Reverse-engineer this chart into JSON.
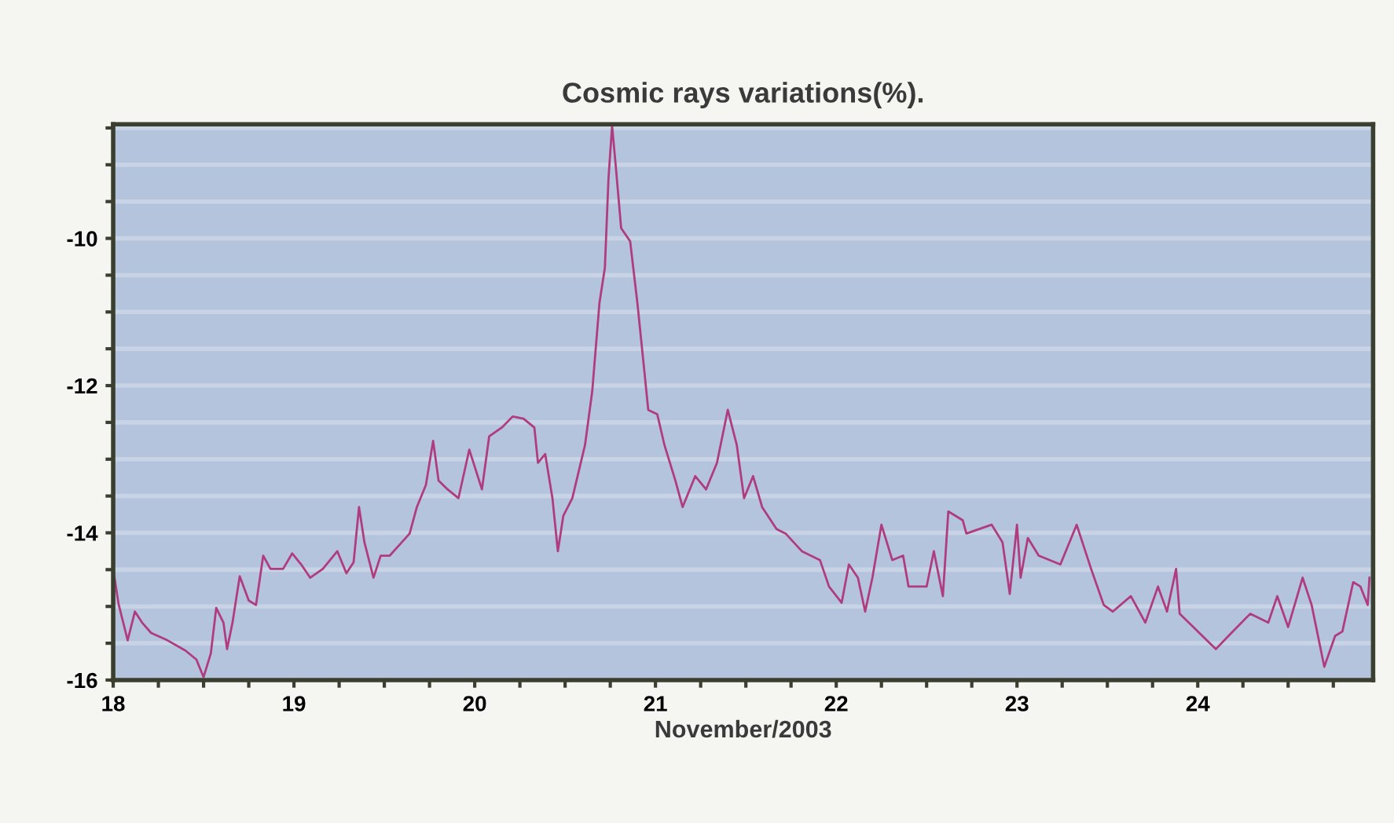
{
  "chart_data": {
    "type": "line",
    "title": "Cosmic rays variations(%).",
    "xlabel": "November/2003",
    "x": [
      18.0,
      18.03,
      18.08,
      18.12,
      18.16,
      18.21,
      18.3,
      18.4,
      18.46,
      18.5,
      18.54,
      18.57,
      18.61,
      18.63,
      18.66,
      18.7,
      18.75,
      18.79,
      18.83,
      18.87,
      18.94,
      18.99,
      19.04,
      19.09,
      19.16,
      19.24,
      19.29,
      19.33,
      19.36,
      19.39,
      19.44,
      19.48,
      19.53,
      19.64,
      19.68,
      19.73,
      19.77,
      19.8,
      19.85,
      19.91,
      19.97,
      20.04,
      20.08,
      20.15,
      20.21,
      20.27,
      20.33,
      20.35,
      20.39,
      20.43,
      20.46,
      20.49,
      20.54,
      20.61,
      20.65,
      20.69,
      20.72,
      20.74,
      20.76,
      20.78,
      20.81,
      20.86,
      20.9,
      20.94,
      20.96,
      21.01,
      21.05,
      21.11,
      21.15,
      21.22,
      21.28,
      21.34,
      21.4,
      21.45,
      21.49,
      21.54,
      21.59,
      21.67,
      21.72,
      21.81,
      21.91,
      21.96,
      22.03,
      22.07,
      22.12,
      22.16,
      22.2,
      22.25,
      22.31,
      22.37,
      22.4,
      22.5,
      22.54,
      22.59,
      22.62,
      22.7,
      22.72,
      22.86,
      22.92,
      22.96,
      23.0,
      23.02,
      23.06,
      23.12,
      23.24,
      23.33,
      23.41,
      23.48,
      23.53,
      23.63,
      23.71,
      23.78,
      23.83,
      23.88,
      23.9,
      24.0,
      24.1,
      24.17,
      24.29,
      24.39,
      24.44,
      24.5,
      24.58,
      24.63,
      24.7,
      24.76,
      24.8,
      24.86,
      24.9,
      24.94,
      24.95
    ],
    "series": [
      {
        "color": "#b03c80",
        "values": [
          -14.49,
          -14.97,
          -15.46,
          -15.07,
          -15.22,
          -15.36,
          -15.46,
          -15.6,
          -15.72,
          -15.96,
          -15.64,
          -15.02,
          -15.22,
          -15.58,
          -15.22,
          -14.59,
          -14.92,
          -14.98,
          -14.31,
          -14.49,
          -14.49,
          -14.28,
          -14.43,
          -14.61,
          -14.49,
          -14.25,
          -14.55,
          -14.4,
          -13.65,
          -14.13,
          -14.61,
          -14.31,
          -14.31,
          -14.01,
          -13.65,
          -13.35,
          -12.75,
          -13.29,
          -13.41,
          -13.53,
          -12.87,
          -13.41,
          -12.69,
          -12.57,
          -12.42,
          -12.45,
          -12.57,
          -13.05,
          -12.93,
          -13.53,
          -14.25,
          -13.77,
          -13.53,
          -12.81,
          -12.08,
          -10.88,
          -10.4,
          -9.19,
          -8.47,
          -9.01,
          -9.86,
          -10.04,
          -10.88,
          -11.84,
          -12.33,
          -12.39,
          -12.81,
          -13.29,
          -13.65,
          -13.23,
          -13.41,
          -13.05,
          -12.33,
          -12.81,
          -13.53,
          -13.23,
          -13.65,
          -13.95,
          -14.01,
          -14.25,
          -14.37,
          -14.73,
          -14.95,
          -14.43,
          -14.61,
          -15.07,
          -14.61,
          -13.89,
          -14.37,
          -14.31,
          -14.73,
          -14.73,
          -14.25,
          -14.86,
          -13.71,
          -13.83,
          -14.01,
          -13.89,
          -14.13,
          -14.83,
          -13.89,
          -14.61,
          -14.07,
          -14.31,
          -14.43,
          -13.89,
          -14.49,
          -14.98,
          -15.07,
          -14.86,
          -15.22,
          -14.73,
          -15.07,
          -14.49,
          -15.1,
          -15.34,
          -15.58,
          -15.4,
          -15.1,
          -15.22,
          -14.86,
          -15.28,
          -14.61,
          -14.98,
          -15.82,
          -15.4,
          -15.34,
          -14.67,
          -14.73,
          -14.98,
          -14.61
        ]
      }
    ],
    "xlim": [
      18,
      24.97
    ],
    "xticks": [
      18,
      {
        "value": 18.25,
        "label": null
      },
      {
        "value": 18.5,
        "label": null
      },
      {
        "value": 18.75,
        "label": null
      },
      19,
      {
        "value": 19.25,
        "label": null
      },
      {
        "value": 19.5,
        "label": null
      },
      {
        "value": 19.75,
        "label": null
      },
      20,
      {
        "value": 20.25,
        "label": null
      },
      {
        "value": 20.5,
        "label": null
      },
      {
        "value": 20.75,
        "label": null
      },
      21,
      {
        "value": 21.25,
        "label": null
      },
      {
        "value": 21.5,
        "label": null
      },
      {
        "value": 21.75,
        "label": null
      },
      22,
      {
        "value": 22.25,
        "label": null
      },
      {
        "value": 22.5,
        "label": null
      },
      {
        "value": 22.75,
        "label": null
      },
      23,
      {
        "value": 23.25,
        "label": null
      },
      {
        "value": 23.5,
        "label": null
      },
      {
        "value": 23.75,
        "label": null
      },
      24,
      {
        "value": 24.25,
        "label": null
      },
      {
        "value": 24.5,
        "label": null
      },
      {
        "value": 24.75,
        "label": null
      }
    ],
    "ylim": [
      -16,
      -8.45
    ],
    "yticks": [
      -16,
      {
        "value": -15.5,
        "label": null
      },
      {
        "value": -15,
        "label": null
      },
      {
        "value": -14.5,
        "label": null
      },
      -14,
      {
        "value": -13.5,
        "label": null
      },
      {
        "value": -13,
        "label": null
      },
      {
        "value": -12.5,
        "label": null
      },
      -12,
      {
        "value": -11.5,
        "label": null
      },
      {
        "value": -11,
        "label": null
      },
      {
        "value": -10.5,
        "label": null
      },
      -10,
      {
        "value": -9.5,
        "label": null
      },
      {
        "value": -9,
        "label": null
      },
      {
        "value": -8.5,
        "label": null
      }
    ],
    "grid": "y",
    "line_style": "solid",
    "marker": "none"
  }
}
